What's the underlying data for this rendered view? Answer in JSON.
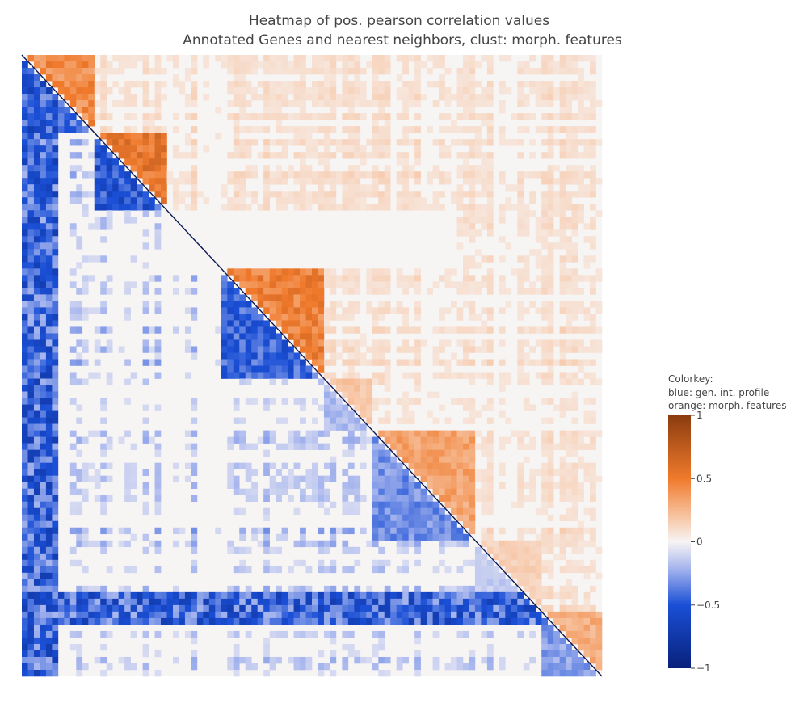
{
  "chart_data": {
    "type": "heatmap",
    "title_line1": "Heatmap of pos. pearson correlation values",
    "title_line2": "Annotated Genes and nearest neighbors, clust: morph. features",
    "xlabel": "",
    "ylabel": "",
    "axes_visible": false,
    "grid": false,
    "layout": "square correlation matrix split along the diagonal: upper-right triangle shows morphological-feature correlations (orange scale, 0 to 1), lower-left triangle shows genetic-interaction-profile correlations (blue scale, 0 to -1)",
    "upper_triangle_series": "orange: morph. features",
    "lower_triangle_series": "blue: gen. int. profile",
    "colorbar": {
      "title_lines": [
        "Colorkey:",
        "blue: gen. int. profile",
        "orange: morph. features"
      ],
      "range": [
        -1,
        1
      ],
      "ticks": [
        1,
        0.5,
        0,
        -0.5,
        -1
      ],
      "tick_labels": [
        "1",
        "0.5",
        "0",
        "−0.5",
        "−1"
      ],
      "colorscale": [
        {
          "value": -1.0,
          "color": "#08217a"
        },
        {
          "value": -0.5,
          "color": "#1a4fd6"
        },
        {
          "value": -0.2,
          "color": "#aab8ee"
        },
        {
          "value": 0.0,
          "color": "#f7f4f4"
        },
        {
          "value": 0.2,
          "color": "#f7c4a2"
        },
        {
          "value": 0.5,
          "color": "#f07a2c"
        },
        {
          "value": 1.0,
          "color": "#8b3c0f"
        }
      ]
    }
  }
}
